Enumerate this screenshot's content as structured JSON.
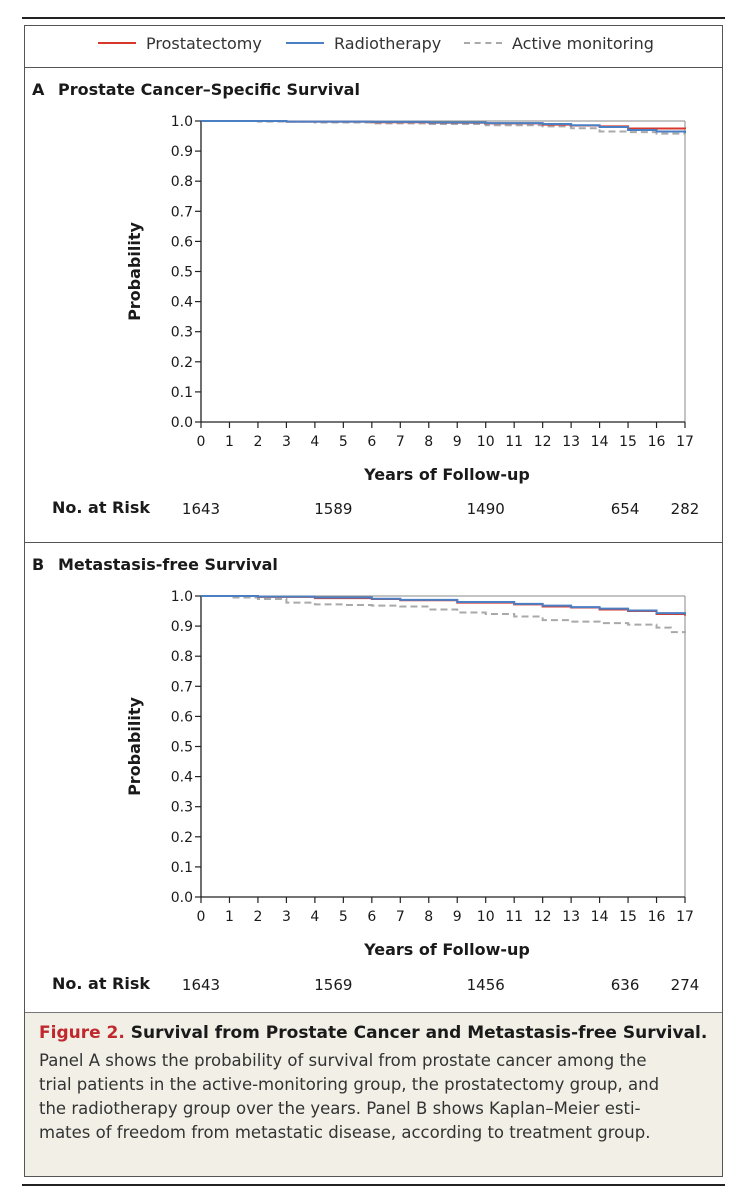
{
  "legend": [
    {
      "name": "Prostatectomy",
      "color": "#d8382c",
      "style": "solid"
    },
    {
      "name": "Radiotherapy",
      "color": "#4b7fc4",
      "style": "solid"
    },
    {
      "name": "Active monitoring",
      "color": "#a9a9a9",
      "style": "dashed"
    }
  ],
  "chart_data": [
    {
      "type": "line",
      "panel_letter": "A",
      "title": "Prostate Cancer–Specific Survival",
      "xlabel": "Years of Follow-up",
      "ylabel": "Probability",
      "xlim": [
        0,
        17
      ],
      "ylim": [
        0,
        1
      ],
      "x_ticks": [
        "0",
        "1",
        "2",
        "3",
        "4",
        "5",
        "6",
        "7",
        "8",
        "9",
        "10",
        "11",
        "12",
        "13",
        "14",
        "15",
        "16",
        "17"
      ],
      "y_ticks": [
        "0.0",
        "0.1",
        "0.2",
        "0.3",
        "0.4",
        "0.5",
        "0.6",
        "0.7",
        "0.8",
        "0.9",
        "1.0"
      ],
      "series": [
        {
          "name": "Prostatectomy",
          "points": [
            [
              0,
              1.0
            ],
            [
              3,
              0.998
            ],
            [
              6,
              0.996
            ],
            [
              8,
              0.994
            ],
            [
              10,
              0.992
            ],
            [
              12,
              0.988
            ],
            [
              13,
              0.985
            ],
            [
              14,
              0.982
            ],
            [
              15,
              0.975
            ],
            [
              17,
              0.973
            ]
          ]
        },
        {
          "name": "Radiotherapy",
          "points": [
            [
              0,
              1.0
            ],
            [
              3,
              0.998
            ],
            [
              6,
              0.997
            ],
            [
              8,
              0.995
            ],
            [
              10,
              0.993
            ],
            [
              12,
              0.99
            ],
            [
              13,
              0.986
            ],
            [
              14,
              0.98
            ],
            [
              15,
              0.97
            ],
            [
              16,
              0.965
            ],
            [
              17,
              0.96
            ]
          ]
        },
        {
          "name": "Active monitoring",
          "points": [
            [
              0,
              1.0
            ],
            [
              2,
              0.998
            ],
            [
              4,
              0.995
            ],
            [
              6,
              0.992
            ],
            [
              8,
              0.99
            ],
            [
              10,
              0.986
            ],
            [
              12,
              0.982
            ],
            [
              13,
              0.976
            ],
            [
              14,
              0.965
            ],
            [
              15,
              0.963
            ],
            [
              16,
              0.958
            ],
            [
              17,
              0.957
            ]
          ]
        }
      ],
      "no_at_risk": {
        "label": "No. at Risk",
        "years": [
          0,
          5,
          10,
          15,
          17
        ],
        "values": [
          "1643",
          "1589",
          "1490",
          "654",
          "282"
        ]
      }
    },
    {
      "type": "line",
      "panel_letter": "B",
      "title": "Metastasis-free Survival",
      "xlabel": "Years of Follow-up",
      "ylabel": "Probability",
      "xlim": [
        0,
        17
      ],
      "ylim": [
        0,
        1
      ],
      "x_ticks": [
        "0",
        "1",
        "2",
        "3",
        "4",
        "5",
        "6",
        "7",
        "8",
        "9",
        "10",
        "11",
        "12",
        "13",
        "14",
        "15",
        "16",
        "17"
      ],
      "y_ticks": [
        "0.0",
        "0.1",
        "0.2",
        "0.3",
        "0.4",
        "0.5",
        "0.6",
        "0.7",
        "0.8",
        "0.9",
        "1.0"
      ],
      "series": [
        {
          "name": "Prostatectomy",
          "points": [
            [
              0,
              1.0
            ],
            [
              2,
              0.997
            ],
            [
              4,
              0.993
            ],
            [
              6,
              0.99
            ],
            [
              7,
              0.986
            ],
            [
              9,
              0.978
            ],
            [
              11,
              0.972
            ],
            [
              12,
              0.965
            ],
            [
              13,
              0.962
            ],
            [
              14,
              0.955
            ],
            [
              15,
              0.95
            ],
            [
              16,
              0.94
            ],
            [
              17,
              0.935
            ]
          ]
        },
        {
          "name": "Radiotherapy",
          "points": [
            [
              0,
              1.0
            ],
            [
              2,
              0.998
            ],
            [
              4,
              0.995
            ],
            [
              6,
              0.991
            ],
            [
              7,
              0.987
            ],
            [
              9,
              0.98
            ],
            [
              11,
              0.974
            ],
            [
              12,
              0.968
            ],
            [
              13,
              0.963
            ],
            [
              14,
              0.958
            ],
            [
              15,
              0.952
            ],
            [
              16,
              0.943
            ],
            [
              17,
              0.938
            ]
          ]
        },
        {
          "name": "Active monitoring",
          "points": [
            [
              0,
              1.0
            ],
            [
              1,
              0.995
            ],
            [
              2,
              0.99
            ],
            [
              3,
              0.978
            ],
            [
              4,
              0.972
            ],
            [
              5,
              0.97
            ],
            [
              6,
              0.968
            ],
            [
              7,
              0.965
            ],
            [
              8,
              0.955
            ],
            [
              9,
              0.945
            ],
            [
              10,
              0.94
            ],
            [
              11,
              0.932
            ],
            [
              12,
              0.92
            ],
            [
              13,
              0.915
            ],
            [
              14,
              0.91
            ],
            [
              15,
              0.905
            ],
            [
              16,
              0.895
            ],
            [
              16.5,
              0.88
            ],
            [
              17,
              0.877
            ]
          ]
        }
      ],
      "no_at_risk": {
        "label": "No. at Risk",
        "years": [
          0,
          5,
          10,
          15,
          17
        ],
        "values": [
          "1643",
          "1569",
          "1456",
          "636",
          "274"
        ]
      }
    }
  ],
  "caption": {
    "figure_label": "Figure 2.",
    "title": "Survival from Prostate Cancer and Metastasis-free Survival.",
    "lines": [
      "Panel A shows the probability of survival from prostate cancer among the",
      "trial patients in the active-monitoring group, the prostatectomy group, and",
      "the radiotherapy group over the years. Panel B shows Kaplan–Meier esti-",
      "mates of freedom from metastatic disease, according to treatment group."
    ]
  }
}
